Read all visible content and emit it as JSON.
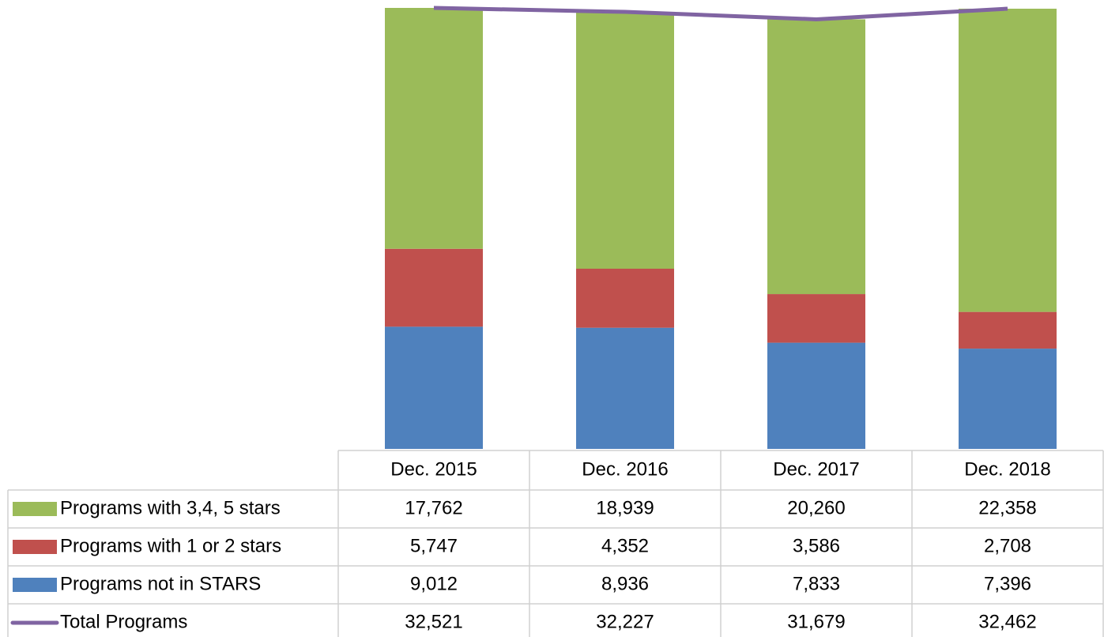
{
  "chart_data": {
    "type": "bar",
    "stacked": true,
    "categories": [
      "Dec. 2015",
      "Dec. 2016",
      "Dec. 2017",
      "Dec. 2018"
    ],
    "series": [
      {
        "name": "Programs with 3,4, 5 stars",
        "type": "bar",
        "color": "#9bbb59",
        "values": [
          17762,
          18939,
          20260,
          22358
        ],
        "value_labels": [
          "17,762",
          "18,939",
          "20,260",
          "22,358"
        ]
      },
      {
        "name": "Programs with 1 or 2 stars",
        "type": "bar",
        "color": "#c0504d",
        "values": [
          5747,
          4352,
          3586,
          2708
        ],
        "value_labels": [
          "5,747",
          "4,352",
          "3,586",
          "2,708"
        ]
      },
      {
        "name": "Programs not in STARS",
        "type": "bar",
        "color": "#4f81bd",
        "values": [
          9012,
          8936,
          7833,
          7396
        ],
        "value_labels": [
          "9,012",
          "8,936",
          "7,833",
          "7,396"
        ]
      },
      {
        "name": "Total Programs",
        "type": "line",
        "color": "#8064a2",
        "values": [
          32521,
          32227,
          31679,
          32462
        ],
        "value_labels": [
          "32,521",
          "32,227",
          "31,679",
          "32,462"
        ]
      }
    ],
    "ylim": [
      0,
      32521
    ]
  }
}
